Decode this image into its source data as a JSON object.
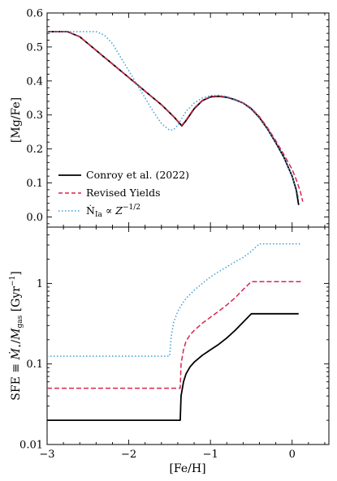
{
  "chart_data": [
    {
      "type": "line",
      "panel": "top",
      "xlabel": "",
      "ylabel": "[Mg/Fe]",
      "xlim": [
        -3.0,
        0.45
      ],
      "ylim": [
        -0.03,
        0.6
      ],
      "y_ticks": [
        0.0,
        0.1,
        0.2,
        0.3,
        0.4,
        0.5,
        0.6
      ],
      "y_tick_labels": [
        "0.0",
        "0.1",
        "0.2",
        "0.3",
        "0.4",
        "0.5",
        "0.6"
      ],
      "legend_position": "lower-left",
      "series": [
        {
          "name": "Conroy et al. (2022)",
          "color": "#000000",
          "style": "solid",
          "x": [
            -3.0,
            -2.75,
            -2.6,
            -2.4,
            -2.2,
            -2.0,
            -1.8,
            -1.6,
            -1.45,
            -1.35,
            -1.3,
            -1.2,
            -1.1,
            -1.0,
            -0.9,
            -0.8,
            -0.7,
            -0.6,
            -0.5,
            -0.4,
            -0.3,
            -0.2,
            -0.1,
            0.0,
            0.05,
            0.08
          ],
          "y": [
            0.545,
            0.545,
            0.53,
            0.49,
            0.45,
            0.41,
            0.37,
            0.33,
            0.295,
            0.268,
            0.283,
            0.318,
            0.342,
            0.353,
            0.355,
            0.352,
            0.345,
            0.335,
            0.318,
            0.292,
            0.258,
            0.218,
            0.175,
            0.12,
            0.08,
            0.035
          ]
        },
        {
          "name": "Revised Yields",
          "color": "#d6274f",
          "style": "dashed",
          "x": [
            -3.0,
            -2.75,
            -2.6,
            -2.4,
            -2.2,
            -2.0,
            -1.8,
            -1.6,
            -1.45,
            -1.35,
            -1.3,
            -1.2,
            -1.1,
            -1.0,
            -0.9,
            -0.8,
            -0.7,
            -0.6,
            -0.5,
            -0.4,
            -0.3,
            -0.2,
            -0.1,
            0.0,
            0.05,
            0.1,
            0.13
          ],
          "y": [
            0.545,
            0.545,
            0.53,
            0.49,
            0.45,
            0.41,
            0.37,
            0.33,
            0.295,
            0.27,
            0.285,
            0.32,
            0.343,
            0.354,
            0.356,
            0.353,
            0.346,
            0.336,
            0.32,
            0.295,
            0.262,
            0.224,
            0.183,
            0.14,
            0.11,
            0.075,
            0.045
          ]
        },
        {
          "name": "Ṅ_Ia ∝ Z^{-1/2}",
          "color": "#3a9fd9",
          "style": "dotted",
          "x": [
            -3.0,
            -2.6,
            -2.4,
            -2.3,
            -2.2,
            -2.1,
            -2.0,
            -1.9,
            -1.8,
            -1.7,
            -1.6,
            -1.5,
            -1.45,
            -1.4,
            -1.35,
            -1.3,
            -1.2,
            -1.1,
            -1.0,
            -0.9,
            -0.8,
            -0.7,
            -0.6,
            -0.5,
            -0.4,
            -0.3,
            -0.2,
            -0.1,
            0.0,
            0.05,
            0.08
          ],
          "y": [
            0.545,
            0.545,
            0.545,
            0.535,
            0.51,
            0.47,
            0.43,
            0.39,
            0.35,
            0.31,
            0.275,
            0.255,
            0.257,
            0.27,
            0.29,
            0.31,
            0.335,
            0.35,
            0.357,
            0.358,
            0.354,
            0.346,
            0.334,
            0.316,
            0.29,
            0.257,
            0.218,
            0.175,
            0.12,
            0.085,
            0.055
          ]
        }
      ]
    },
    {
      "type": "line",
      "panel": "bottom",
      "xlabel": "[Fe/H]",
      "ylabel": "SFE ≡ Ṁ⋆/M_gas [Gyr⁻¹]",
      "xlim": [
        -3.0,
        0.45
      ],
      "ylim": [
        0.01,
        5.0
      ],
      "y_scale": "log",
      "x_ticks": [
        -3,
        -2,
        -1,
        0
      ],
      "x_tick_labels": [
        "−3",
        "−2",
        "−1",
        "0"
      ],
      "y_ticks": [
        0.01,
        0.1,
        1
      ],
      "y_tick_labels": [
        "0.01",
        "0.1",
        "1"
      ],
      "series": [
        {
          "name": "Conroy et al. (2022)",
          "color": "#000000",
          "style": "solid",
          "x": [
            -3.0,
            -1.37,
            -1.36,
            -1.33,
            -1.3,
            -1.25,
            -1.2,
            -1.1,
            -1.0,
            -0.9,
            -0.8,
            -0.7,
            -0.6,
            -0.5,
            -0.2,
            0.08
          ],
          "y": [
            0.02,
            0.02,
            0.04,
            0.06,
            0.075,
            0.092,
            0.105,
            0.128,
            0.15,
            0.175,
            0.21,
            0.26,
            0.33,
            0.42,
            0.42,
            0.42
          ]
        },
        {
          "name": "Revised Yields",
          "color": "#d6274f",
          "style": "dashed",
          "x": [
            -3.0,
            -1.37,
            -1.36,
            -1.33,
            -1.3,
            -1.25,
            -1.2,
            -1.1,
            -1.0,
            -0.9,
            -0.8,
            -0.7,
            -0.6,
            -0.5,
            -0.2,
            0.13
          ],
          "y": [
            0.05,
            0.05,
            0.1,
            0.15,
            0.19,
            0.23,
            0.26,
            0.32,
            0.38,
            0.45,
            0.54,
            0.66,
            0.84,
            1.05,
            1.05,
            1.05
          ]
        },
        {
          "name": "Ṅ_Ia ∝ Z^{-1/2}",
          "color": "#3a9fd9",
          "style": "dotted",
          "x": [
            -3.0,
            -1.5,
            -1.48,
            -1.45,
            -1.4,
            -1.35,
            -1.3,
            -1.2,
            -1.1,
            -1.0,
            -0.9,
            -0.8,
            -0.7,
            -0.6,
            -0.5,
            -0.4,
            0.1
          ],
          "y": [
            0.125,
            0.125,
            0.22,
            0.33,
            0.45,
            0.55,
            0.65,
            0.82,
            1.0,
            1.2,
            1.4,
            1.6,
            1.85,
            2.1,
            2.5,
            3.1,
            3.1
          ]
        }
      ]
    }
  ]
}
